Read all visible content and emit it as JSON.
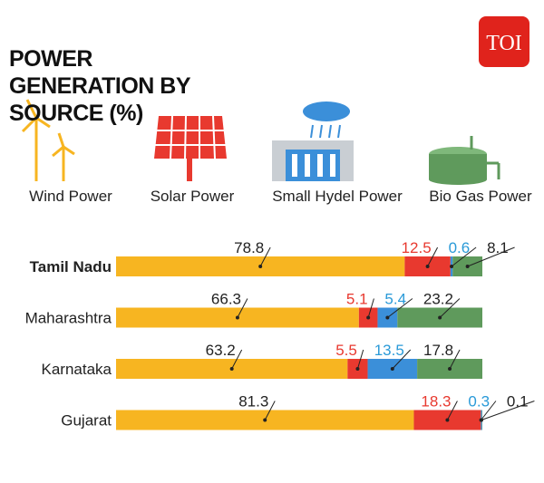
{
  "logo": "TOI",
  "chart_data": {
    "type": "stacked-barh",
    "title": "POWER GENERATION BY SOURCE (%)",
    "categories": [
      "Tamil Nadu",
      "Maharashtra",
      "Karnataka",
      "Gujarat"
    ],
    "xlim": [
      0,
      100
    ],
    "series": [
      {
        "name": "Wind Power",
        "color": "#f7b521",
        "label_color": "#222222",
        "values": [
          78.8,
          66.3,
          63.2,
          81.3
        ]
      },
      {
        "name": "Solar Power",
        "color": "#e8392f",
        "label_color": "#e8392f",
        "values": [
          12.5,
          5.1,
          5.5,
          18.3
        ]
      },
      {
        "name": "Small Hydel Power",
        "color": "#3b8fd9",
        "label_color": "#2a9ad8",
        "values": [
          0.6,
          5.4,
          13.5,
          0.3
        ]
      },
      {
        "name": "Bio Gas Power",
        "color": "#5f9a5c",
        "label_color": "#222222",
        "values": [
          8.1,
          23.2,
          17.8,
          0.1
        ]
      }
    ]
  }
}
